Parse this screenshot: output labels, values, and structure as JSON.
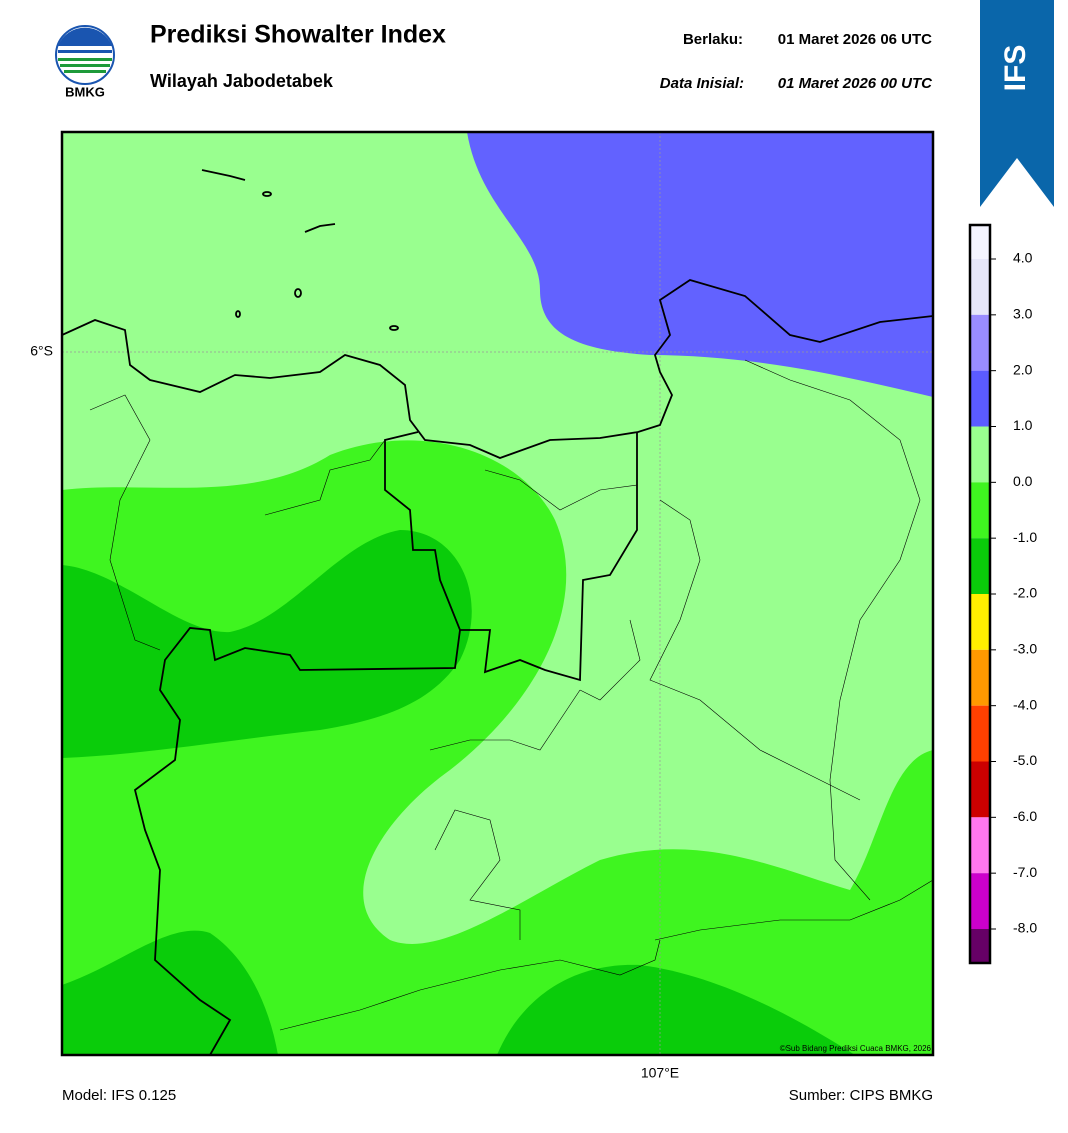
{
  "header": {
    "logo_text": "BMKG",
    "title": "Prediksi Showalter Index",
    "subtitle": "Wilayah Jabodetabek",
    "valid_label": "Berlaku:",
    "valid_time": "01 Maret 2026 06 UTC",
    "init_label": "Data Inisial:",
    "init_time": "01 Maret 2026 00 UTC",
    "badge": "IFS"
  },
  "map": {
    "lat_label": "6°S",
    "lon_label": "107°E",
    "copyright": "©Sub Bidang Prediksi Cuaca BMKG, 2026"
  },
  "colorbar": {
    "ticks": [
      {
        "value": 4,
        "label": "4.0"
      },
      {
        "value": 3,
        "label": "3.0"
      },
      {
        "value": 2,
        "label": "2.0"
      },
      {
        "value": 1,
        "label": "1.0"
      },
      {
        "value": 0,
        "label": "0.0"
      },
      {
        "value": -1,
        "label": "-1.0"
      },
      {
        "value": -2,
        "label": "-2.0"
      },
      {
        "value": -3,
        "label": "-3.0"
      },
      {
        "value": -4,
        "label": "-4.0"
      },
      {
        "value": -5,
        "label": "-5.0"
      },
      {
        "value": -6,
        "label": "-6.0"
      },
      {
        "value": -7,
        "label": "-7.0"
      },
      {
        "value": -8,
        "label": "-8.0"
      }
    ],
    "colors": [
      "#f4f4ff",
      "#e6e6fa",
      "#9a8cff",
      "#5b5bff",
      "#99ff8f",
      "#3ff520",
      "#0acc0a",
      "#ffee00",
      "#ff9900",
      "#ff4000",
      "#cc0000",
      "#ff77ee",
      "#cc00cc",
      "#660066"
    ]
  },
  "footer": {
    "model": "Model: IFS 0.125",
    "source": "Sumber: CIPS BMKG"
  }
}
